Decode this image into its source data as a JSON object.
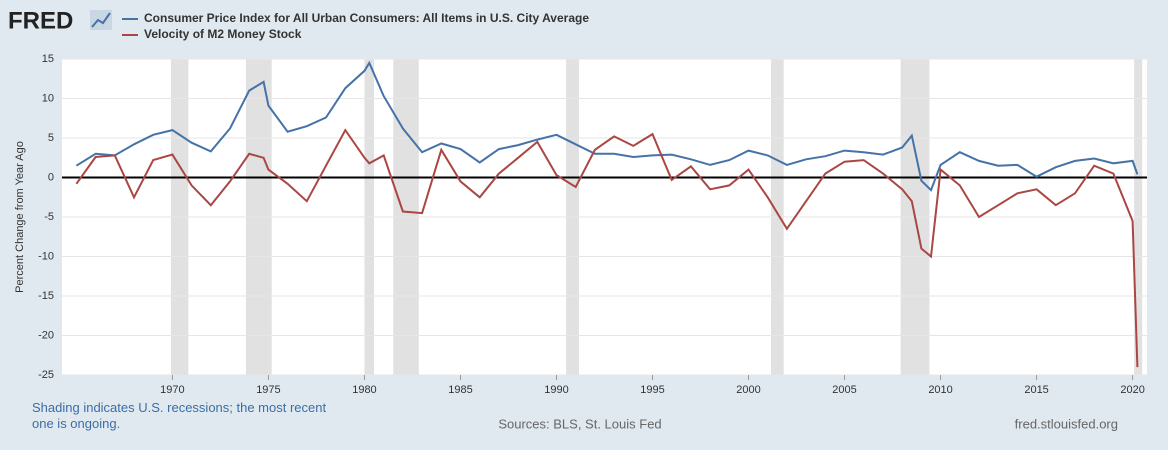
{
  "chart_data": {
    "type": "line",
    "logo": "FRED",
    "ylabel": "Percent Change from Year Ago",
    "note": "Shading indicates U.S. recessions; the most recent one is ongoing.",
    "source": "Sources: BLS, St. Louis Fed",
    "site": "fred.stlouisfed.org",
    "x": [
      1965,
      1966,
      1967,
      1968,
      1969,
      1970,
      1971,
      1972,
      1973,
      1974,
      1974.75,
      1975,
      1976,
      1977,
      1978,
      1979,
      1980,
      1980.25,
      1981,
      1982,
      1983,
      1984,
      1985,
      1986,
      1987,
      1988,
      1989,
      1990,
      1991,
      1992,
      1993,
      1994,
      1995,
      1996,
      1997,
      1998,
      1999,
      2000,
      2001,
      2002,
      2003,
      2004,
      2005,
      2006,
      2007,
      2008,
      2008.5,
      2009,
      2009.5,
      2010,
      2011,
      2012,
      2013,
      2014,
      2015,
      2016,
      2017,
      2018,
      2019,
      2020,
      2020.25
    ],
    "series": [
      {
        "name": "Consumer Price Index for All Urban Consumers: All Items in U.S. City Average",
        "color": "#4572a7",
        "values": [
          1.5,
          3.0,
          2.8,
          4.2,
          5.4,
          6.0,
          4.4,
          3.3,
          6.2,
          11.0,
          12.1,
          9.1,
          5.8,
          6.5,
          7.6,
          11.3,
          13.5,
          14.5,
          10.3,
          6.2,
          3.2,
          4.3,
          3.6,
          1.9,
          3.6,
          4.1,
          4.8,
          5.4,
          4.2,
          3.0,
          3.0,
          2.6,
          2.8,
          2.9,
          2.3,
          1.6,
          2.2,
          3.4,
          2.8,
          1.6,
          2.3,
          2.7,
          3.4,
          3.2,
          2.9,
          3.8,
          5.3,
          -0.4,
          -1.6,
          1.6,
          3.2,
          2.1,
          1.5,
          1.6,
          0.1,
          1.3,
          2.1,
          2.4,
          1.8,
          2.1,
          0.4
        ]
      },
      {
        "name": "Velocity of M2 Money Stock",
        "color": "#aa4643",
        "values": [
          -0.8,
          2.6,
          2.8,
          -2.5,
          2.2,
          2.9,
          -1.0,
          -3.5,
          -0.5,
          3.0,
          2.5,
          1.0,
          -0.8,
          -3.0,
          1.5,
          6.0,
          2.5,
          1.8,
          2.8,
          -4.3,
          -4.5,
          3.5,
          -0.5,
          -2.5,
          0.5,
          2.5,
          4.5,
          0.3,
          -1.2,
          3.5,
          5.2,
          4.0,
          5.5,
          -0.3,
          1.4,
          -1.5,
          -1.0,
          1.0,
          -2.5,
          -6.5,
          -3.0,
          0.5,
          2.0,
          2.2,
          0.5,
          -1.5,
          -3.0,
          -9.0,
          -10.0,
          1.0,
          -1.0,
          -5.0,
          -3.5,
          -2.0,
          -1.5,
          -3.5,
          -2.0,
          1.5,
          0.5,
          -5.5,
          -24
        ]
      }
    ],
    "recessions": [
      [
        1969.92,
        1970.83
      ],
      [
        1973.83,
        1975.17
      ],
      [
        1980.0,
        1980.5
      ],
      [
        1981.5,
        1982.83
      ],
      [
        1990.5,
        1991.17
      ],
      [
        2001.17,
        2001.83
      ],
      [
        2007.92,
        2009.42
      ],
      [
        2020.08,
        2020.5
      ]
    ],
    "xlim": [
      1964.25,
      2020.75
    ],
    "xticks": [
      1970,
      1975,
      1980,
      1985,
      1990,
      1995,
      2000,
      2005,
      2010,
      2015,
      2020
    ],
    "ylim": [
      -25,
      15
    ],
    "yticks": [
      -25,
      -20,
      -15,
      -10,
      -5,
      0,
      5,
      10,
      15
    ],
    "grid": true
  }
}
